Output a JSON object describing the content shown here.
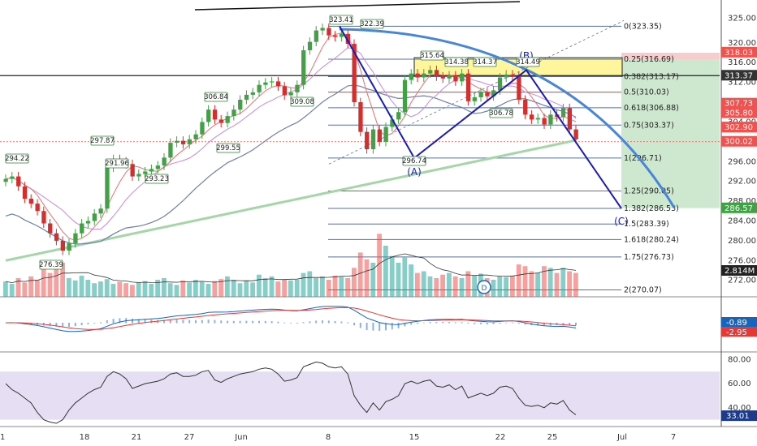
{
  "colors": {
    "up": "#26a69a",
    "down": "#ef5350",
    "up_candle": "#43a047",
    "down_candle": "#d32f2f",
    "wave_line": "#1a1ab8",
    "arc": "#4a86d6",
    "fib_line": "#5b6f99",
    "ma200": "#a5d6a7",
    "ma_blue": "#6f7fa8",
    "ma_red": "#e57373",
    "ma_pink": "#c48bd6",
    "green_zone": "#a5d6a7",
    "yellow_zone": "#fff59d",
    "rsi_band": "#d1c4e9",
    "macd_line": "#1565c0",
    "signal_line": "#e53935"
  },
  "chart_data": [
    {
      "type": "candlestick",
      "panel": "price",
      "ylim": [
        269,
        328
      ],
      "y_ticks": [
        325.0,
        320.0,
        316.0,
        312.0,
        308.0,
        304.0,
        300.0,
        296.0,
        292.0,
        288.0,
        284.0,
        280.0,
        276.0,
        272.0
      ],
      "x_ticks": [
        "1",
        "18",
        "21",
        "27",
        "Jun",
        "8",
        "15",
        "22",
        "25",
        "Jul",
        "7"
      ],
      "closes": [
        292.5,
        293.0,
        291.0,
        288.5,
        287.5,
        286.0,
        283.5,
        281.5,
        280.0,
        278.0,
        279.5,
        281.5,
        283.5,
        284.0,
        285.5,
        286.5,
        294.8,
        296.5,
        296.0,
        295.5,
        293.0,
        293.5,
        294.0,
        294.5,
        295.2,
        296.8,
        299.8,
        300.2,
        299.5,
        300.5,
        301.5,
        304.0,
        306.5,
        304.5,
        303.8,
        305.2,
        306.5,
        308.5,
        309.5,
        310.0,
        311.5,
        312.0,
        312.2,
        311.2,
        309.4,
        310.0,
        311.5,
        318.5,
        320.2,
        322.5,
        323.0,
        321.5,
        321.2,
        321.8,
        319.8,
        308.0,
        302.0,
        298.5,
        302.5,
        300.0,
        303.0,
        304.5,
        306.0,
        312.5,
        313.8,
        313.0,
        313.8,
        314.5,
        313.2,
        312.8,
        313.4,
        312.2,
        313.8,
        308.2,
        309.0,
        310.0,
        309.2,
        310.4,
        313.0,
        313.6,
        313.2,
        308.5,
        305.5,
        304.5,
        304.8,
        303.5,
        305.5,
        305.0,
        306.8,
        302.5,
        300.5
      ],
      "price_labels": [
        "323.41",
        "322.39",
        "315.64",
        "314.38",
        "314.37",
        "314.49",
        "309.08",
        "306.84",
        "306.78",
        "297.87",
        "299.55",
        "296.74",
        "294.22",
        "291.96",
        "293.23",
        "276.39"
      ],
      "fib_levels": [
        {
          "ratio": "0",
          "price": 323.35,
          "label": "0(323.35)"
        },
        {
          "ratio": "0.25",
          "price": 316.69,
          "label": "0.25(316.69)"
        },
        {
          "ratio": "0.382",
          "price": 313.17,
          "label": "0.382(313.17)"
        },
        {
          "ratio": "0.5",
          "price": 310.03,
          "label": "0.5(310.03)"
        },
        {
          "ratio": "0.618",
          "price": 306.88,
          "label": "0.618(306.88)"
        },
        {
          "ratio": "0.75",
          "price": 303.37,
          "label": "0.75(303.37)"
        },
        {
          "ratio": "1",
          "price": 296.71,
          "label": "1(296.71)"
        },
        {
          "ratio": "1.25",
          "price": 290.05,
          "label": "1.25(290.05)"
        },
        {
          "ratio": "1.382",
          "price": 286.53,
          "label": "1.382(286.53)"
        },
        {
          "ratio": "1.5",
          "price": 283.39,
          "label": "1.5(283.39)"
        },
        {
          "ratio": "1.618",
          "price": 280.24,
          "label": "1.618(280.24)"
        },
        {
          "ratio": "1.75",
          "price": 276.73,
          "label": "1.75(276.73)"
        },
        {
          "ratio": "2",
          "price": 270.07,
          "label": "2(270.07)"
        }
      ],
      "wave_labels": [
        "(A)",
        "(B)",
        "(C)"
      ],
      "wave_points": [
        {
          "label": "start",
          "price": 323.35
        },
        {
          "label": "(A)",
          "price": 296.71
        },
        {
          "label": "(B)",
          "price": 314.49
        },
        {
          "label": "(C)",
          "price": 286.53
        }
      ],
      "axis_tags": [
        {
          "value": "318.03",
          "color": "#ef5350"
        },
        {
          "value": "313.37",
          "color": "#333333"
        },
        {
          "value": "307.73",
          "color": "#ef5350"
        },
        {
          "value": "305.80",
          "color": "#ef5350"
        },
        {
          "value": "302.90",
          "color": "#ef5350"
        },
        {
          "value": "300.02",
          "color": "#ef5350"
        },
        {
          "value": "286.57",
          "color": "#43a047"
        }
      ],
      "volume_badge": "D",
      "volume_tag": "2.814M",
      "volumes": [
        0.45,
        0.38,
        0.55,
        0.42,
        0.6,
        0.5,
        0.95,
        0.7,
        0.85,
        1.0,
        0.55,
        0.48,
        0.62,
        0.5,
        0.4,
        0.45,
        0.52,
        0.38,
        0.44,
        0.4,
        0.35,
        0.42,
        0.46,
        0.38,
        0.5,
        0.55,
        0.4,
        0.35,
        0.48,
        0.42,
        0.5,
        0.44,
        0.38,
        0.46,
        0.52,
        0.6,
        0.5,
        0.4,
        0.48,
        0.42,
        0.65,
        0.55,
        0.6,
        0.45,
        0.5,
        0.48,
        0.5,
        0.7,
        0.75,
        0.55,
        0.6,
        0.5,
        0.62,
        0.58,
        0.55,
        0.85,
        1.3,
        1.1,
        1.0,
        1.85,
        1.5,
        1.2,
        1.0,
        1.15,
        0.95,
        0.7,
        0.75,
        0.6,
        0.55,
        0.65,
        0.7,
        0.6,
        0.55,
        0.75,
        0.62,
        0.68,
        0.55,
        0.5,
        0.6,
        0.58,
        0.62,
        0.95,
        0.9,
        0.75,
        0.7,
        0.9,
        0.85,
        0.7,
        0.85,
        0.75,
        0.7
      ]
    },
    {
      "type": "macd",
      "panel": "macd",
      "tags": [
        {
          "value": "-0.89",
          "color": "#1565c0"
        },
        {
          "value": "-2.95",
          "color": "#e53935"
        }
      ]
    },
    {
      "type": "line",
      "panel": "rsi",
      "ylim": [
        25,
        85
      ],
      "y_ticks": [
        80.0,
        60.0,
        40.0
      ],
      "band": [
        30,
        70
      ],
      "tag": "33.01",
      "values": [
        60,
        55,
        52,
        48,
        44,
        36,
        30,
        28,
        27,
        30,
        38,
        44,
        48,
        52,
        55,
        57,
        66,
        70,
        68,
        64,
        56,
        58,
        60,
        61,
        62,
        64,
        68,
        69,
        66,
        66,
        67,
        70,
        71,
        63,
        61,
        64,
        66,
        68,
        69,
        70,
        72,
        73,
        72,
        68,
        62,
        63,
        65,
        74,
        76,
        78,
        77,
        74,
        73,
        74,
        68,
        50,
        42,
        36,
        44,
        38,
        45,
        47,
        50,
        60,
        62,
        60,
        62,
        63,
        58,
        57,
        59,
        55,
        58,
        48,
        50,
        52,
        50,
        52,
        57,
        58,
        56,
        48,
        42,
        41,
        42,
        40,
        44,
        43,
        46,
        38,
        34
      ]
    }
  ]
}
